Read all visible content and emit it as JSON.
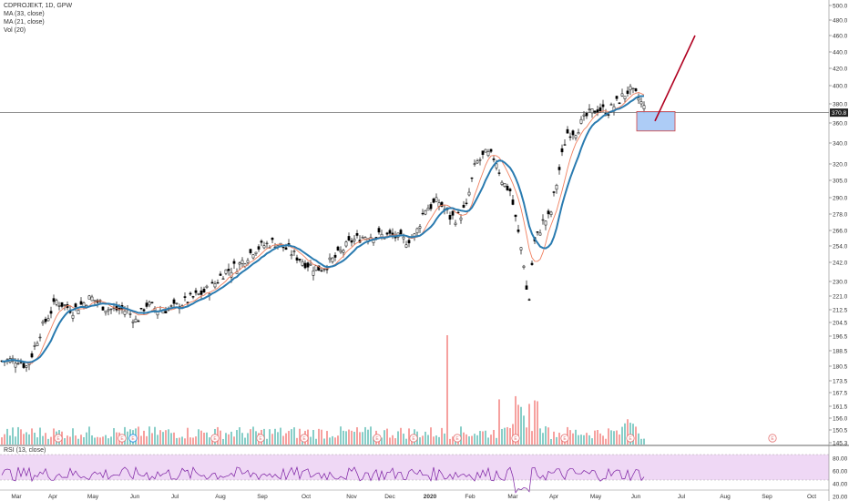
{
  "legend": {
    "symbol_line": "CDPROJEKT, 1D, GPW",
    "ma33": "MA (33, close)",
    "ma21": "MA (21, close)",
    "vol": "Vol (20)"
  },
  "rsi_label": "RSI (13, close)",
  "last_price_label": "370.8",
  "colors": {
    "up": "#26a69a",
    "down": "#ef5350",
    "candle": "#000000",
    "ma33": "#2a7bb0",
    "ma21": "#f08060",
    "rsi_line": "#7b1fa2",
    "rsi_band": "#efd8f5",
    "target_box_fill": "#9fc3f5",
    "target_box_stroke": "#d04040",
    "arrow": "#b00020"
  },
  "earnings_marker_text": "E",
  "chart_data": {
    "type": "candlestick",
    "title": "CDPROJEKT, 1D, GPW",
    "price_axis_ticks": [
      500.0,
      480.0,
      460.0,
      440.0,
      420.0,
      400.0,
      380.0,
      360.0,
      340.0,
      320.0,
      305.0,
      290.0,
      278.0,
      266.0,
      254.0,
      242.0,
      230.0,
      221.0,
      212.5,
      204.5,
      196.5,
      188.5,
      180.5,
      173.5,
      167.5,
      161.5,
      156.0,
      150.5,
      145.3
    ],
    "rsi_axis_ticks": [
      80.0,
      60.0,
      40.0,
      20.0
    ],
    "x_tick_labels": [
      "Mar",
      "Apr",
      "May",
      "Jun",
      "Jul",
      "Aug",
      "Sep",
      "Oct",
      "Nov",
      "Dec",
      "2020",
      "Feb",
      "Mar",
      "Apr",
      "May",
      "Jun",
      "Jul",
      "Aug",
      "Sep",
      "Oct"
    ],
    "price_trend": {
      "months": [
        "Mar",
        "Apr",
        "May",
        "Jun",
        "Jul",
        "Aug",
        "Sep",
        "Oct",
        "Nov",
        "Dec",
        "2020",
        "Feb",
        "Mar",
        "Apr",
        "May",
        "Jun"
      ],
      "close": [
        183,
        215,
        216,
        210,
        215,
        228,
        258,
        240,
        255,
        268,
        290,
        320,
        205,
        300,
        380,
        370.8
      ]
    },
    "last_price": 370.8,
    "target_box": {
      "low": 352,
      "high": 372
    },
    "projection_arrow": {
      "from": 362,
      "to": 460
    },
    "ma_periods": [
      33,
      21
    ],
    "rsi_period": 13,
    "grid": false,
    "legend_position": "top-left"
  }
}
